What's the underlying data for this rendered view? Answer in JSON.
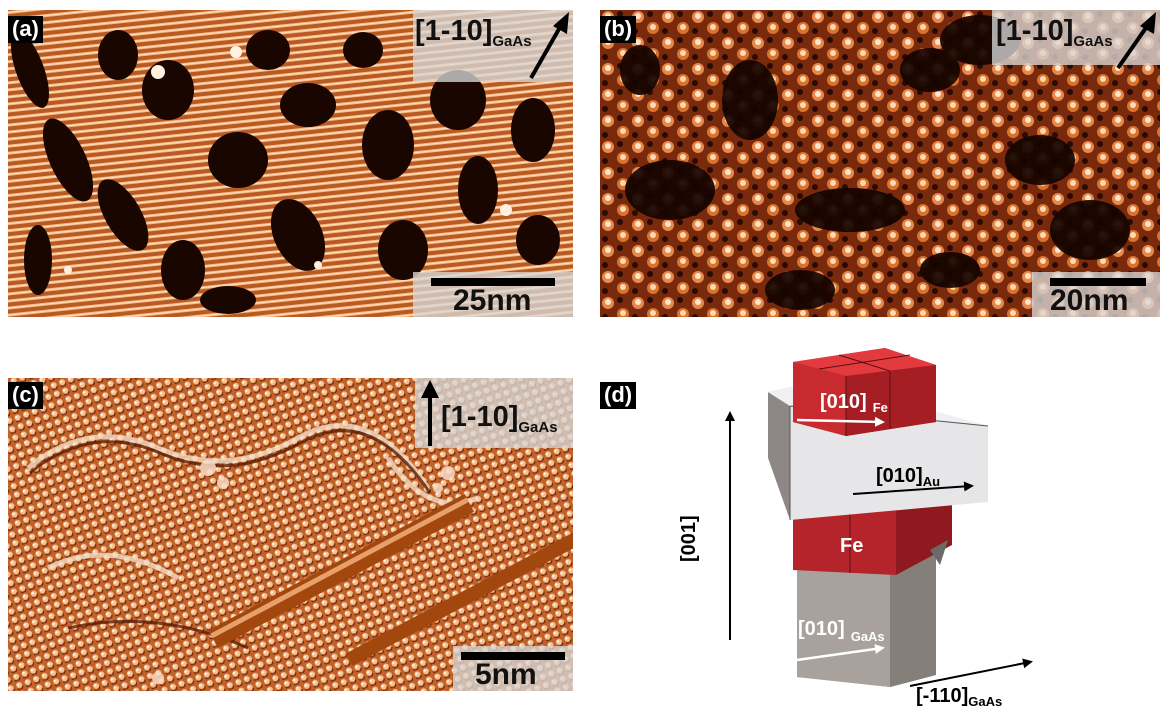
{
  "panels": {
    "a": {
      "label": "(a)",
      "direction": "[1-10]",
      "direction_sub": "GaAs",
      "scale": "25nm"
    },
    "b": {
      "label": "(b)",
      "direction": "[1-10]",
      "direction_sub": "GaAs",
      "scale": "20nm"
    },
    "c": {
      "label": "(c)",
      "direction": "[1-10]",
      "direction_sub": "GaAs",
      "scale": "5nm"
    },
    "d": {
      "label": "(d)",
      "fe_direction": "[010]",
      "fe_direction_sub": "Fe",
      "au_direction": "[010]",
      "au_direction_sub": "Au",
      "fe_label": "Fe",
      "gaas_direction": "[010]",
      "gaas_direction_sub": "GaAs",
      "vertical_axis": "[001]",
      "horizontal_axis": "[-110]",
      "horizontal_axis_sub": "GaAs"
    }
  },
  "colors": {
    "stm_dark": "#1a0600",
    "stm_orange": "#c8642a",
    "stm_light": "#ffe3c4",
    "fe_red": "#c0262a",
    "au_white": "#e4e4e6",
    "gaas_gray": "#9a9490"
  }
}
